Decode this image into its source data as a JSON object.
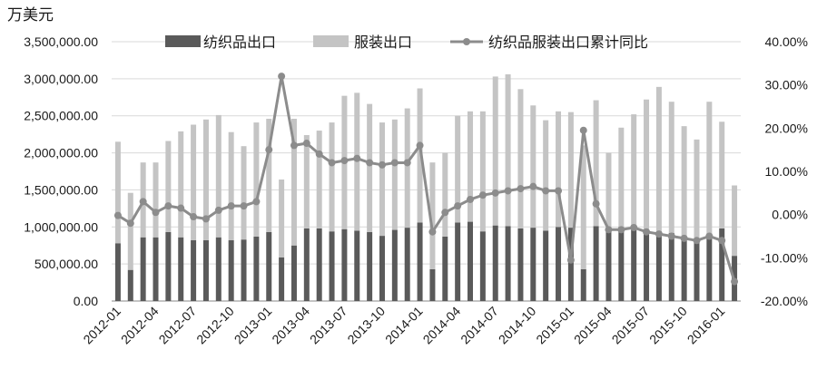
{
  "chart_data": {
    "type": "bar",
    "y_unit": "万美元",
    "legend": {
      "position": "top",
      "items": [
        {
          "label": "纺织品出口",
          "kind": "bar",
          "color": "#5a5a5a"
        },
        {
          "label": "服装出口",
          "kind": "bar",
          "color": "#c4c4c4"
        },
        {
          "label": "纺织品服装出口累计同比",
          "kind": "line",
          "color": "#8c8c8c"
        }
      ]
    },
    "x_tick_labels": [
      "2012-01",
      "2012-04",
      "2012-07",
      "2012-10",
      "2013-01",
      "2013-04",
      "2013-07",
      "2013-10",
      "2014-01",
      "2014-04",
      "2014-07",
      "2014-10",
      "2015-01",
      "2015-04",
      "2015-07",
      "2015-10",
      "2016-01"
    ],
    "y_left": {
      "min": 0,
      "max": 3500000,
      "step": 500000,
      "tick_labels": [
        "0.00",
        "500,000.00",
        "1,000,000.00",
        "1,500,000.00",
        "2,000,000.00",
        "2,500,000.00",
        "3,000,000.00",
        "3,500,000.00"
      ]
    },
    "y_right": {
      "min": -20,
      "max": 40,
      "step": 10,
      "tick_labels": [
        "-20.00%",
        "-10.00%",
        "0.00%",
        "10.00%",
        "20.00%",
        "30.00%",
        "40.00%"
      ]
    },
    "categories": [
      "2012-01",
      "2012-02",
      "2012-03",
      "2012-04",
      "2012-05",
      "2012-06",
      "2012-07",
      "2012-08",
      "2012-09",
      "2012-10",
      "2012-11",
      "2012-12",
      "2013-01",
      "2013-02",
      "2013-03",
      "2013-04",
      "2013-05",
      "2013-06",
      "2013-07",
      "2013-08",
      "2013-09",
      "2013-10",
      "2013-11",
      "2013-12",
      "2014-01",
      "2014-02",
      "2014-03",
      "2014-04",
      "2014-05",
      "2014-06",
      "2014-07",
      "2014-08",
      "2014-09",
      "2014-10",
      "2014-11",
      "2014-12",
      "2015-01",
      "2015-02",
      "2015-03",
      "2015-04",
      "2015-05",
      "2015-06",
      "2015-07",
      "2015-08",
      "2015-09",
      "2015-10",
      "2015-11",
      "2015-12",
      "2016-01",
      "2016-02"
    ],
    "series": [
      {
        "name": "纺织品出口",
        "type": "bar",
        "axis": "left",
        "values": [
          780000,
          420000,
          860000,
          860000,
          930000,
          860000,
          820000,
          820000,
          860000,
          820000,
          830000,
          870000,
          930000,
          590000,
          750000,
          980000,
          980000,
          940000,
          970000,
          950000,
          930000,
          880000,
          960000,
          990000,
          1060000,
          430000,
          870000,
          1060000,
          1070000,
          940000,
          1020000,
          1010000,
          980000,
          990000,
          950000,
          1000000,
          990000,
          430000,
          1010000,
          960000,
          1000000,
          990000,
          940000,
          940000,
          920000,
          870000,
          790000,
          860000,
          980000,
          610000
        ]
      },
      {
        "name": "服装出口",
        "type": "bar",
        "axis": "left",
        "values": [
          1370000,
          1040000,
          1010000,
          1010000,
          1230000,
          1430000,
          1560000,
          1630000,
          1650000,
          1460000,
          1260000,
          1540000,
          1530000,
          1050000,
          1710000,
          1260000,
          1320000,
          1470000,
          1800000,
          1860000,
          1730000,
          1530000,
          1490000,
          1610000,
          1810000,
          1440000,
          1130000,
          1440000,
          1490000,
          1620000,
          2010000,
          2050000,
          1880000,
          1650000,
          1490000,
          1560000,
          1560000,
          1670000,
          1700000,
          1040000,
          1340000,
          1530000,
          1780000,
          1950000,
          1770000,
          1490000,
          1390000,
          1830000,
          1440000,
          950000
        ]
      },
      {
        "name": "纺织品服装出口累计同比",
        "type": "line",
        "axis": "right",
        "values": [
          -0.2,
          -2.0,
          3.0,
          0.5,
          2.0,
          1.5,
          -0.5,
          -1.0,
          1.0,
          2.0,
          2.0,
          3.0,
          15.0,
          32.0,
          16.0,
          16.5,
          14.0,
          12.0,
          12.5,
          13.0,
          12.0,
          11.5,
          12.0,
          12.0,
          16.0,
          -4.0,
          0.5,
          2.0,
          3.5,
          4.5,
          5.0,
          5.5,
          6.0,
          6.5,
          5.5,
          5.5,
          -10.5,
          19.5,
          2.5,
          -3.5,
          -3.5,
          -3.0,
          -4.0,
          -4.5,
          -5.0,
          -5.5,
          -6.0,
          -5.0,
          -6.0,
          -15.5
        ]
      }
    ]
  }
}
